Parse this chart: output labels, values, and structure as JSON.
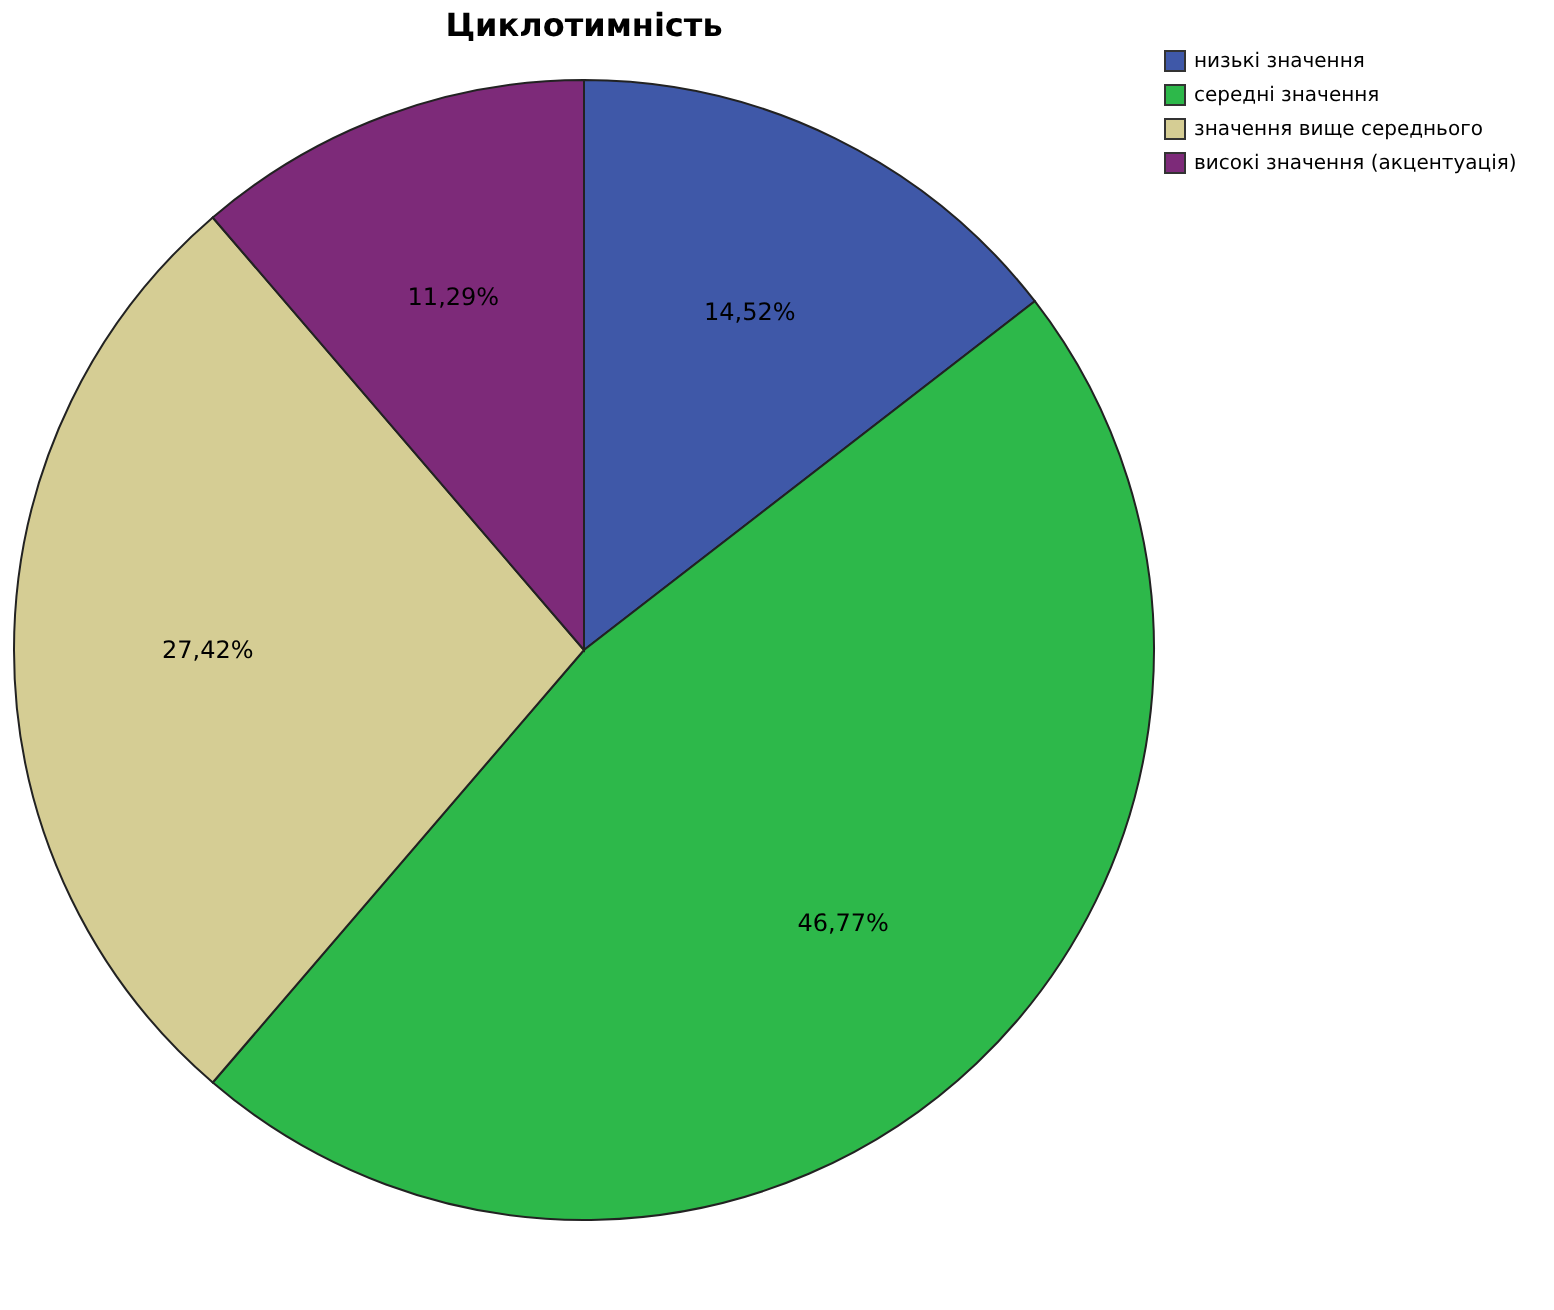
{
  "chart_data": {
    "type": "pie",
    "title": "Циклотимність",
    "categories": [
      "низькі значення",
      "середні значення",
      "значення вище середнього",
      "високі значення (акцентуація)"
    ],
    "values": [
      14.52,
      46.77,
      27.42,
      11.29
    ],
    "colors": [
      "#3f58a8",
      "#2db84a",
      "#d5cd94",
      "#7d2a79"
    ],
    "value_labels": [
      "14,52%",
      "46,77%",
      "27,42%",
      "11,29%"
    ],
    "legend": "top right"
  }
}
